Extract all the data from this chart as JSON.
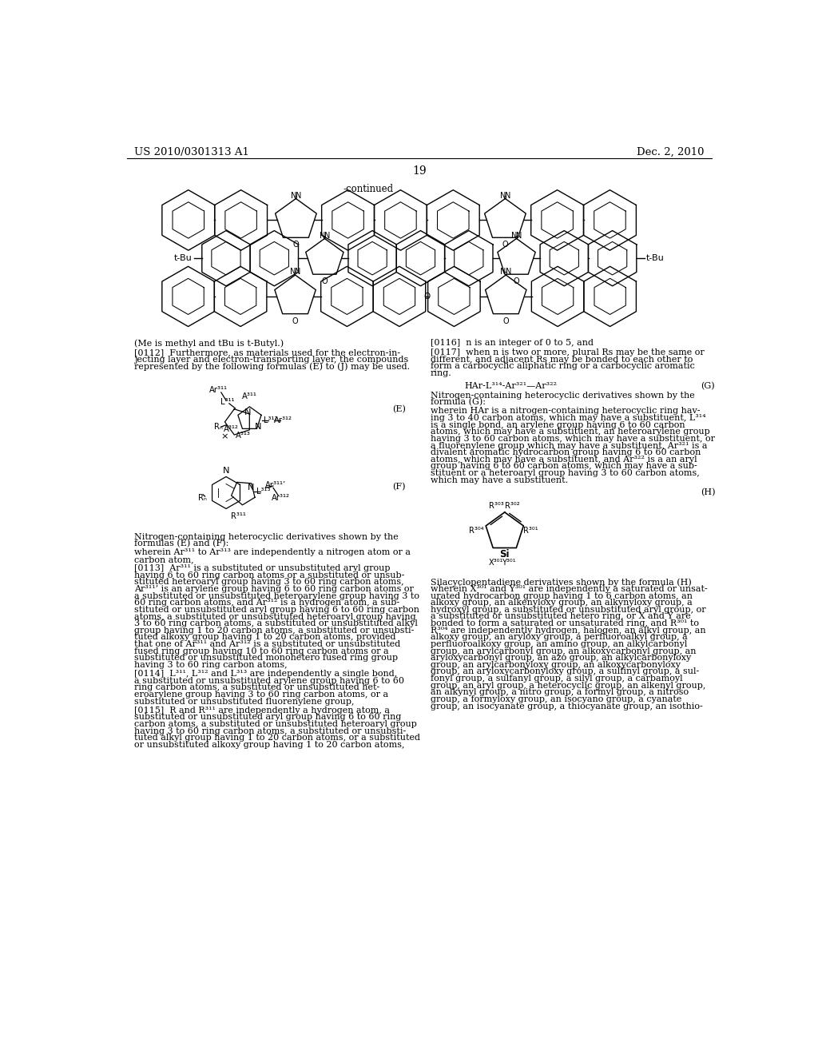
{
  "page_header_left": "US 2010/0301313 A1",
  "page_header_right": "Dec. 2, 2010",
  "page_number": "19",
  "continued_label": "-continued",
  "background_color": "#ffffff",
  "text_color": "#000000"
}
